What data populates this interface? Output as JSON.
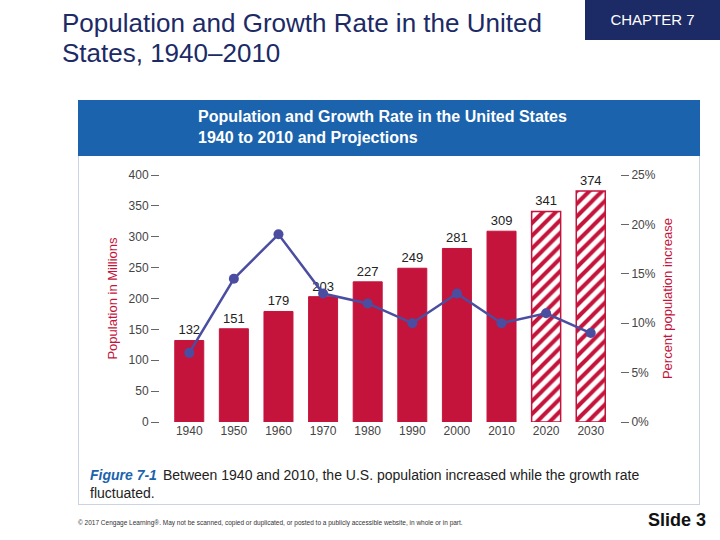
{
  "slide_title": "Population and Growth Rate in the United States, 1940–2010",
  "chapter": "CHAPTER 7",
  "figure_label": "Figure 7-1",
  "caption": "Between 1940 and 2010, the U.S. population increased while the growth rate fluctuated.",
  "copyright": "© 2017 Cengage Learning®. May not be scanned, copied or duplicated, or posted to a publicly accessible website, in whole or in part.",
  "slide_number": "Slide 3",
  "chart_data": {
    "type": "bar",
    "title": "Population and Growth Rate in the United States 1940 to 2010 and Projections",
    "y_label": "Population in Millions",
    "y2_label": "Percent population increase",
    "categories": [
      "1940",
      "1950",
      "1960",
      "1970",
      "1980",
      "1990",
      "2000",
      "2010",
      "2020",
      "2030"
    ],
    "series": [
      {
        "type": "bar",
        "color": "#c4143c",
        "marker": "solid",
        "values": [
          132,
          151,
          179,
          203,
          227,
          249,
          281,
          309,
          null,
          null
        ]
      },
      {
        "type": "bar",
        "color": "#c4143c",
        "marker": "hatched",
        "values": [
          null,
          null,
          null,
          null,
          null,
          null,
          null,
          null,
          341,
          374
        ]
      },
      {
        "type": "line",
        "color": "#4b4ea0",
        "marker": "circle",
        "line_style": "solid",
        "axis": "y2",
        "values": [
          7,
          14.5,
          19,
          13,
          12,
          10,
          13,
          10,
          11,
          9
        ]
      }
    ],
    "data_labels": true,
    "grid": false,
    "ylim": [
      0,
      400
    ],
    "yticks": [
      0,
      50,
      100,
      150,
      200,
      250,
      300,
      350,
      400
    ],
    "y2lim": [
      0,
      25
    ],
    "y2ticks": [
      {
        "value": 0,
        "label": "0%"
      },
      {
        "value": 5,
        "label": "5%"
      },
      {
        "value": 10,
        "label": "10%"
      },
      {
        "value": 15,
        "label": "15%"
      },
      {
        "value": 20,
        "label": "20%"
      },
      {
        "value": 25,
        "label": "25%"
      }
    ]
  }
}
